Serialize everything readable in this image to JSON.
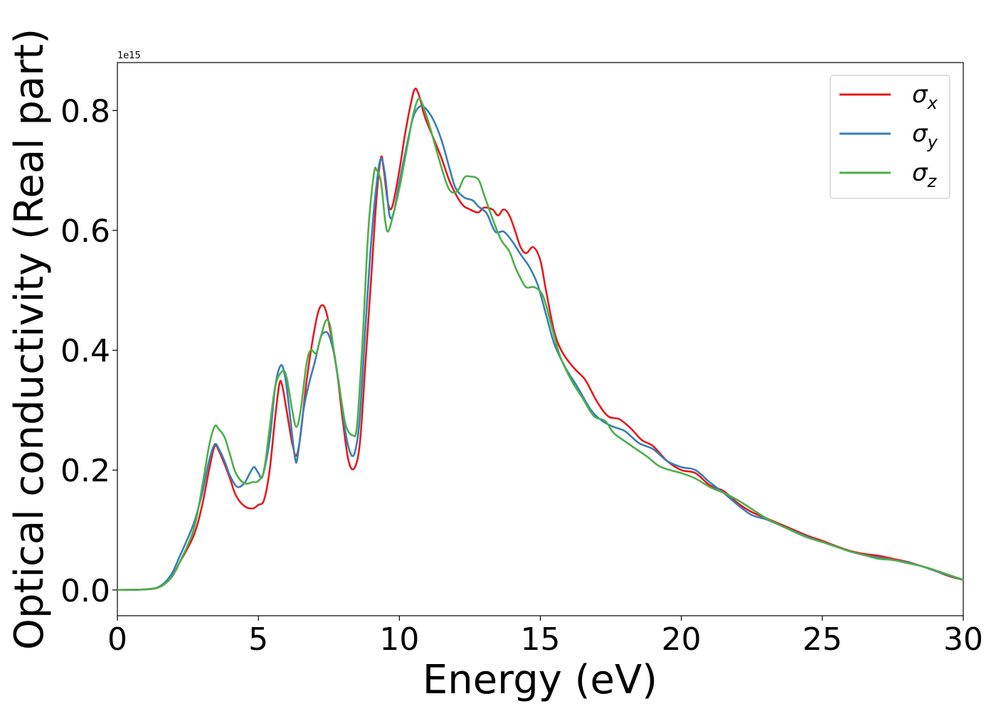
{
  "chart_data": {
    "type": "line",
    "xlabel": "Energy (eV)",
    "ylabel": "Optical conductivity (Real part)",
    "y_offset_label": "1e15",
    "xlim": [
      0,
      30
    ],
    "ylim": [
      -0.043,
      0.88
    ],
    "xticks": [
      0,
      5,
      10,
      15,
      20,
      25,
      30
    ],
    "yticks": [
      0.0,
      0.2,
      0.4,
      0.6,
      0.8
    ],
    "xtick_labels": [
      "0",
      "5",
      "10",
      "15",
      "20",
      "25",
      "30"
    ],
    "ytick_labels": [
      "0.0",
      "0.2",
      "0.4",
      "0.6",
      "0.8"
    ],
    "grid": false,
    "legend": "top-right",
    "series": [
      {
        "name": "σx",
        "sub": "x",
        "color": "#e41a1c",
        "points": [
          [
            0,
            0
          ],
          [
            1,
            0.001
          ],
          [
            1.5,
            0.005
          ],
          [
            1.9,
            0.02
          ],
          [
            2.2,
            0.045
          ],
          [
            2.7,
            0.09
          ],
          [
            3.0,
            0.14
          ],
          [
            3.25,
            0.2
          ],
          [
            3.45,
            0.24
          ],
          [
            3.6,
            0.232
          ],
          [
            3.8,
            0.21
          ],
          [
            4.0,
            0.185
          ],
          [
            4.2,
            0.158
          ],
          [
            4.5,
            0.14
          ],
          [
            4.8,
            0.136
          ],
          [
            5.0,
            0.142
          ],
          [
            5.2,
            0.15
          ],
          [
            5.4,
            0.2
          ],
          [
            5.6,
            0.29
          ],
          [
            5.75,
            0.345
          ],
          [
            5.85,
            0.34
          ],
          [
            6.0,
            0.3
          ],
          [
            6.2,
            0.245
          ],
          [
            6.35,
            0.224
          ],
          [
            6.5,
            0.26
          ],
          [
            6.7,
            0.345
          ],
          [
            6.9,
            0.41
          ],
          [
            7.1,
            0.46
          ],
          [
            7.25,
            0.475
          ],
          [
            7.4,
            0.465
          ],
          [
            7.6,
            0.42
          ],
          [
            7.8,
            0.36
          ],
          [
            8.0,
            0.28
          ],
          [
            8.2,
            0.215
          ],
          [
            8.4,
            0.203
          ],
          [
            8.6,
            0.245
          ],
          [
            8.8,
            0.38
          ],
          [
            9.0,
            0.52
          ],
          [
            9.2,
            0.66
          ],
          [
            9.35,
            0.722
          ],
          [
            9.45,
            0.7
          ],
          [
            9.6,
            0.645
          ],
          [
            9.75,
            0.64
          ],
          [
            10.0,
            0.7
          ],
          [
            10.2,
            0.76
          ],
          [
            10.4,
            0.81
          ],
          [
            10.55,
            0.836
          ],
          [
            10.7,
            0.825
          ],
          [
            10.9,
            0.79
          ],
          [
            11.2,
            0.755
          ],
          [
            11.5,
            0.72
          ],
          [
            11.8,
            0.68
          ],
          [
            12.2,
            0.645
          ],
          [
            12.5,
            0.635
          ],
          [
            12.8,
            0.63
          ],
          [
            13.0,
            0.638
          ],
          [
            13.3,
            0.635
          ],
          [
            13.5,
            0.625
          ],
          [
            13.7,
            0.635
          ],
          [
            13.9,
            0.625
          ],
          [
            14.1,
            0.6
          ],
          [
            14.3,
            0.572
          ],
          [
            14.5,
            0.562
          ],
          [
            14.75,
            0.572
          ],
          [
            15.0,
            0.55
          ],
          [
            15.2,
            0.5
          ],
          [
            15.5,
            0.43
          ],
          [
            15.8,
            0.395
          ],
          [
            16.2,
            0.37
          ],
          [
            16.6,
            0.35
          ],
          [
            17.0,
            0.315
          ],
          [
            17.4,
            0.29
          ],
          [
            17.8,
            0.285
          ],
          [
            18.2,
            0.27
          ],
          [
            18.6,
            0.25
          ],
          [
            19.0,
            0.24
          ],
          [
            19.5,
            0.215
          ],
          [
            20.0,
            0.2
          ],
          [
            20.5,
            0.195
          ],
          [
            21.0,
            0.175
          ],
          [
            21.5,
            0.165
          ],
          [
            22.0,
            0.145
          ],
          [
            22.5,
            0.13
          ],
          [
            23.0,
            0.12
          ],
          [
            23.5,
            0.11
          ],
          [
            24.0,
            0.1
          ],
          [
            24.5,
            0.09
          ],
          [
            25.0,
            0.082
          ],
          [
            25.5,
            0.073
          ],
          [
            26.0,
            0.065
          ],
          [
            26.5,
            0.06
          ],
          [
            27.0,
            0.057
          ],
          [
            27.5,
            0.052
          ],
          [
            28.0,
            0.047
          ],
          [
            28.5,
            0.04
          ],
          [
            29.0,
            0.032
          ],
          [
            29.5,
            0.023
          ],
          [
            30.0,
            0.017
          ]
        ]
      },
      {
        "name": "σy",
        "sub": "y",
        "color": "#377eb8",
        "points": [
          [
            0,
            0
          ],
          [
            1,
            0.001
          ],
          [
            1.5,
            0.006
          ],
          [
            1.9,
            0.025
          ],
          [
            2.2,
            0.055
          ],
          [
            2.7,
            0.11
          ],
          [
            3.0,
            0.16
          ],
          [
            3.25,
            0.215
          ],
          [
            3.45,
            0.243
          ],
          [
            3.6,
            0.235
          ],
          [
            3.8,
            0.215
          ],
          [
            4.0,
            0.19
          ],
          [
            4.25,
            0.172
          ],
          [
            4.5,
            0.178
          ],
          [
            4.7,
            0.195
          ],
          [
            4.85,
            0.205
          ],
          [
            5.0,
            0.195
          ],
          [
            5.15,
            0.19
          ],
          [
            5.4,
            0.25
          ],
          [
            5.6,
            0.34
          ],
          [
            5.8,
            0.375
          ],
          [
            5.95,
            0.355
          ],
          [
            6.1,
            0.3
          ],
          [
            6.3,
            0.22
          ],
          [
            6.4,
            0.225
          ],
          [
            6.6,
            0.3
          ],
          [
            6.8,
            0.345
          ],
          [
            7.0,
            0.38
          ],
          [
            7.2,
            0.42
          ],
          [
            7.35,
            0.43
          ],
          [
            7.5,
            0.425
          ],
          [
            7.7,
            0.39
          ],
          [
            7.9,
            0.33
          ],
          [
            8.1,
            0.26
          ],
          [
            8.3,
            0.225
          ],
          [
            8.45,
            0.235
          ],
          [
            8.6,
            0.29
          ],
          [
            8.8,
            0.44
          ],
          [
            9.0,
            0.58
          ],
          [
            9.2,
            0.68
          ],
          [
            9.35,
            0.72
          ],
          [
            9.5,
            0.69
          ],
          [
            9.65,
            0.625
          ],
          [
            9.8,
            0.63
          ],
          [
            10.0,
            0.68
          ],
          [
            10.3,
            0.75
          ],
          [
            10.5,
            0.79
          ],
          [
            10.7,
            0.806
          ],
          [
            10.9,
            0.805
          ],
          [
            11.2,
            0.785
          ],
          [
            11.5,
            0.75
          ],
          [
            11.8,
            0.7
          ],
          [
            12.0,
            0.67
          ],
          [
            12.3,
            0.655
          ],
          [
            12.6,
            0.65
          ],
          [
            12.8,
            0.64
          ],
          [
            13.1,
            0.628
          ],
          [
            13.4,
            0.598
          ],
          [
            13.7,
            0.598
          ],
          [
            14.0,
            0.582
          ],
          [
            14.3,
            0.56
          ],
          [
            14.6,
            0.54
          ],
          [
            14.9,
            0.51
          ],
          [
            15.2,
            0.46
          ],
          [
            15.5,
            0.41
          ],
          [
            15.9,
            0.37
          ],
          [
            16.3,
            0.34
          ],
          [
            16.8,
            0.3
          ],
          [
            17.2,
            0.282
          ],
          [
            17.6,
            0.272
          ],
          [
            18.0,
            0.265
          ],
          [
            18.5,
            0.245
          ],
          [
            19.0,
            0.235
          ],
          [
            19.5,
            0.215
          ],
          [
            20.0,
            0.205
          ],
          [
            20.5,
            0.2
          ],
          [
            21.0,
            0.18
          ],
          [
            21.5,
            0.162
          ],
          [
            22.0,
            0.142
          ],
          [
            22.5,
            0.125
          ],
          [
            23.0,
            0.118
          ],
          [
            23.5,
            0.108
          ],
          [
            24.0,
            0.098
          ],
          [
            24.5,
            0.088
          ],
          [
            25.0,
            0.08
          ],
          [
            25.5,
            0.072
          ],
          [
            26.0,
            0.064
          ],
          [
            26.5,
            0.058
          ],
          [
            27.0,
            0.054
          ],
          [
            27.5,
            0.05
          ],
          [
            28.0,
            0.046
          ],
          [
            28.5,
            0.04
          ],
          [
            29.0,
            0.032
          ],
          [
            29.5,
            0.024
          ],
          [
            30.0,
            0.017
          ]
        ]
      },
      {
        "name": "σz",
        "sub": "z",
        "color": "#4daf4a",
        "points": [
          [
            0,
            0
          ],
          [
            1,
            0.001
          ],
          [
            1.5,
            0.005
          ],
          [
            1.9,
            0.02
          ],
          [
            2.2,
            0.045
          ],
          [
            2.7,
            0.1
          ],
          [
            3.0,
            0.17
          ],
          [
            3.25,
            0.24
          ],
          [
            3.45,
            0.273
          ],
          [
            3.6,
            0.268
          ],
          [
            3.8,
            0.255
          ],
          [
            4.0,
            0.225
          ],
          [
            4.2,
            0.195
          ],
          [
            4.5,
            0.178
          ],
          [
            4.8,
            0.18
          ],
          [
            5.0,
            0.182
          ],
          [
            5.2,
            0.2
          ],
          [
            5.4,
            0.27
          ],
          [
            5.6,
            0.34
          ],
          [
            5.85,
            0.365
          ],
          [
            6.0,
            0.355
          ],
          [
            6.2,
            0.3
          ],
          [
            6.35,
            0.272
          ],
          [
            6.5,
            0.3
          ],
          [
            6.7,
            0.375
          ],
          [
            6.85,
            0.4
          ],
          [
            7.05,
            0.395
          ],
          [
            7.2,
            0.42
          ],
          [
            7.4,
            0.45
          ],
          [
            7.55,
            0.44
          ],
          [
            7.7,
            0.39
          ],
          [
            7.9,
            0.33
          ],
          [
            8.1,
            0.275
          ],
          [
            8.35,
            0.258
          ],
          [
            8.5,
            0.275
          ],
          [
            8.7,
            0.42
          ],
          [
            8.9,
            0.6
          ],
          [
            9.1,
            0.695
          ],
          [
            9.2,
            0.7
          ],
          [
            9.35,
            0.68
          ],
          [
            9.5,
            0.615
          ],
          [
            9.6,
            0.598
          ],
          [
            9.75,
            0.62
          ],
          [
            10.0,
            0.67
          ],
          [
            10.3,
            0.745
          ],
          [
            10.5,
            0.795
          ],
          [
            10.7,
            0.82
          ],
          [
            10.9,
            0.8
          ],
          [
            11.1,
            0.77
          ],
          [
            11.4,
            0.72
          ],
          [
            11.7,
            0.675
          ],
          [
            11.9,
            0.663
          ],
          [
            12.1,
            0.668
          ],
          [
            12.3,
            0.688
          ],
          [
            12.5,
            0.69
          ],
          [
            12.8,
            0.685
          ],
          [
            13.0,
            0.66
          ],
          [
            13.3,
            0.62
          ],
          [
            13.6,
            0.585
          ],
          [
            13.9,
            0.565
          ],
          [
            14.1,
            0.54
          ],
          [
            14.3,
            0.52
          ],
          [
            14.5,
            0.505
          ],
          [
            14.8,
            0.505
          ],
          [
            15.1,
            0.49
          ],
          [
            15.4,
            0.44
          ],
          [
            15.7,
            0.39
          ],
          [
            16.1,
            0.35
          ],
          [
            16.5,
            0.32
          ],
          [
            16.9,
            0.29
          ],
          [
            17.3,
            0.282
          ],
          [
            17.6,
            0.262
          ],
          [
            18.0,
            0.248
          ],
          [
            18.4,
            0.235
          ],
          [
            18.8,
            0.222
          ],
          [
            19.2,
            0.207
          ],
          [
            19.6,
            0.2
          ],
          [
            20.0,
            0.195
          ],
          [
            20.5,
            0.186
          ],
          [
            21.0,
            0.172
          ],
          [
            21.5,
            0.162
          ],
          [
            22.0,
            0.15
          ],
          [
            22.5,
            0.135
          ],
          [
            23.0,
            0.12
          ],
          [
            23.5,
            0.108
          ],
          [
            24.0,
            0.097
          ],
          [
            24.5,
            0.087
          ],
          [
            25.0,
            0.08
          ],
          [
            25.5,
            0.072
          ],
          [
            26.0,
            0.064
          ],
          [
            26.5,
            0.058
          ],
          [
            27.0,
            0.052
          ],
          [
            27.5,
            0.05
          ],
          [
            28.0,
            0.045
          ],
          [
            28.5,
            0.04
          ],
          [
            29.0,
            0.033
          ],
          [
            29.5,
            0.025
          ],
          [
            30.0,
            0.017
          ]
        ]
      }
    ]
  }
}
